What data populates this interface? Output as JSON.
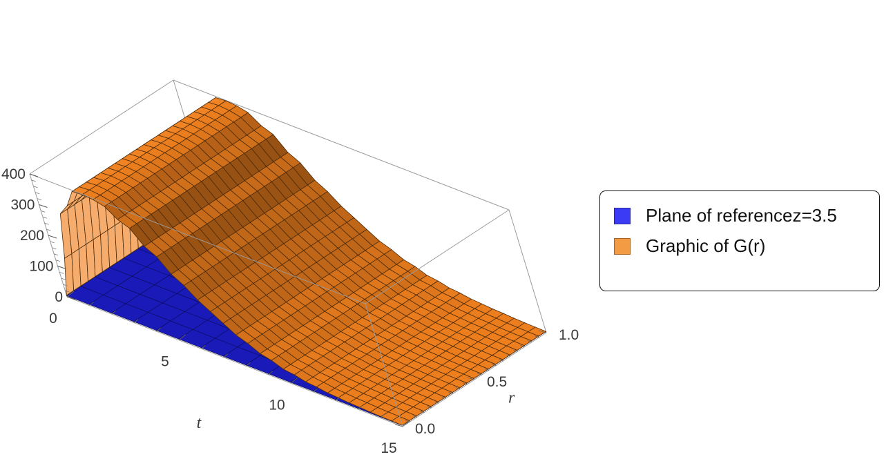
{
  "chart_data": {
    "type": "surface3d",
    "axes": {
      "t": {
        "label": "t",
        "range": [
          0,
          15
        ],
        "ticks": [
          0,
          5,
          10,
          15
        ]
      },
      "r": {
        "label": "r",
        "range": [
          0,
          1
        ],
        "ticks": [
          "0.0",
          "0.5",
          "1.0"
        ]
      },
      "z": {
        "range": [
          0,
          400
        ],
        "ticks": [
          0,
          100,
          200,
          300,
          400
        ]
      }
    },
    "legend": {
      "placement": "right",
      "framed": true
    },
    "series": [
      {
        "name": "Plane of referencez=3.5",
        "kind": "plane",
        "z": 3.5,
        "color": "#1a1ab8",
        "legend_color": "#3b3bf5"
      },
      {
        "name": "Graphic of G(r)",
        "kind": "surface",
        "color": "#f0801e",
        "legend_color": "#f39a45",
        "t": [
          0,
          1,
          2,
          3,
          4,
          5,
          6,
          7,
          8,
          9,
          10,
          11,
          12,
          13,
          14,
          15
        ],
        "z_profile": [
          5,
          300,
          400,
          395,
          350,
          280,
          210,
          150,
          100,
          65,
          40,
          25,
          15,
          10,
          6,
          4
        ]
      }
    ]
  }
}
